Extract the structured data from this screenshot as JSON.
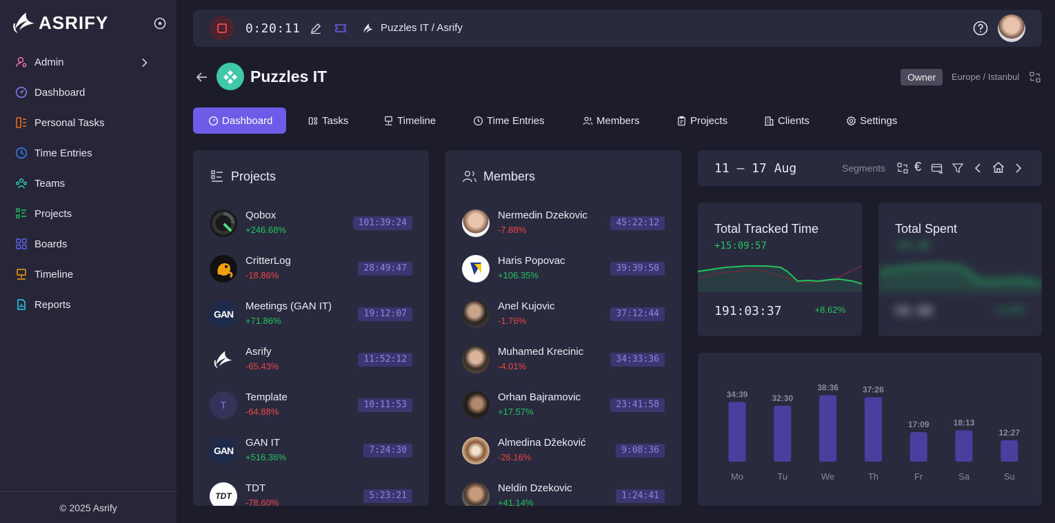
{
  "brand": {
    "name": "ASRIFY",
    "footer": "© 2025 Asrify"
  },
  "sidebar": {
    "items": [
      {
        "label": "Admin",
        "icon": "admin-icon",
        "color": "#f472b6"
      },
      {
        "label": "Dashboard",
        "icon": "dashboard-icon",
        "color": "#8b7cf6"
      },
      {
        "label": "Personal Tasks",
        "icon": "personal-tasks-icon",
        "color": "#f97316"
      },
      {
        "label": "Time Entries",
        "icon": "clock-icon",
        "color": "#3b82f6"
      },
      {
        "label": "Teams",
        "icon": "teams-icon",
        "color": "#2dd4bf"
      },
      {
        "label": "Projects",
        "icon": "projects-icon",
        "color": "#22c55e"
      },
      {
        "label": "Boards",
        "icon": "boards-icon",
        "color": "#6366f1"
      },
      {
        "label": "Timeline",
        "icon": "timeline-icon",
        "color": "#f59e0b"
      },
      {
        "label": "Reports",
        "icon": "reports-icon",
        "color": "#22d3ee"
      }
    ]
  },
  "topbar": {
    "timer": "0:20:11",
    "breadcrumb": "Puzzles IT / Asrify"
  },
  "header": {
    "org_name": "Puzzles IT",
    "role": "Owner",
    "timezone": "Europe / Istanbul"
  },
  "tabs": [
    {
      "label": "Dashboard",
      "icon": "dashboard-icon",
      "active": true
    },
    {
      "label": "Tasks",
      "icon": "tasks-icon"
    },
    {
      "label": "Timeline",
      "icon": "timeline-icon"
    },
    {
      "label": "Time Entries",
      "icon": "clock-icon"
    },
    {
      "label": "Members",
      "icon": "members-icon"
    },
    {
      "label": "Projects",
      "icon": "clipboard-icon"
    },
    {
      "label": "Clients",
      "icon": "building-icon"
    },
    {
      "label": "Settings",
      "icon": "gear-icon"
    }
  ],
  "projects": {
    "title": "Projects",
    "items": [
      {
        "name": "Qobox",
        "change": "+246.68%",
        "time": "101:39:24",
        "logo": "qobox-logo"
      },
      {
        "name": "CritterLog",
        "change": "-18.86%",
        "time": "28:49:47",
        "logo": "critterlog-logo"
      },
      {
        "name": "Meetings (GAN IT)",
        "change": "+71.86%",
        "time": "19:12:07",
        "logo": "gan-logo"
      },
      {
        "name": "Asrify",
        "change": "-65.43%",
        "time": "11:52:12",
        "logo": "asrify-logo"
      },
      {
        "name": "Template",
        "change": "-64.88%",
        "time": "10:11:53",
        "logo": "letter-avatar",
        "initial": "T"
      },
      {
        "name": "GAN IT",
        "change": "+516.36%",
        "time": "7:24:30",
        "logo": "gan-logo"
      },
      {
        "name": "TDT",
        "change": "-78.60%",
        "time": "5:23:21",
        "logo": "tdt-logo"
      }
    ]
  },
  "members": {
    "title": "Members",
    "items": [
      {
        "name": "Nermedin Dzekovic",
        "change": "-7.88%",
        "time": "45:22:12"
      },
      {
        "name": "Haris Popovac",
        "change": "+106.35%",
        "time": "39:39:50"
      },
      {
        "name": "Anel Kujovic",
        "change": "-1.76%",
        "time": "37:12:44"
      },
      {
        "name": "Muhamed Krecinic",
        "change": "-4.01%",
        "time": "34:33:36"
      },
      {
        "name": "Orhan Bajramovic",
        "change": "+17.57%",
        "time": "23:41:58"
      },
      {
        "name": "Almedina Džeković",
        "change": "-26.16%",
        "time": "9:08:36"
      },
      {
        "name": "Neldin Dzekovic",
        "change": "+41.14%",
        "time": "1:24:41"
      }
    ]
  },
  "week": {
    "range": "11 – 17 Aug",
    "segments_label": "Segments"
  },
  "tracked": {
    "title": "Total Tracked Time",
    "delta": "+15:09:57",
    "total": "191:03:37",
    "percent": "+8.62%"
  },
  "spent": {
    "title": "Total Spent",
    "delta": "+€0.00",
    "total": "€0.00",
    "percent": "+0.00%"
  },
  "chart_data": {
    "type": "bar",
    "categories": [
      "Mo",
      "Tu",
      "We",
      "Th",
      "Fr",
      "Sa",
      "Su"
    ],
    "labels": [
      "34:39",
      "32:30",
      "38:36",
      "37:26",
      "17:09",
      "18:13",
      "12:27"
    ],
    "values": [
      34.65,
      32.5,
      38.6,
      37.43,
      17.15,
      18.22,
      12.45
    ],
    "ylim": [
      0,
      40
    ],
    "color": "#4a3f9e"
  }
}
